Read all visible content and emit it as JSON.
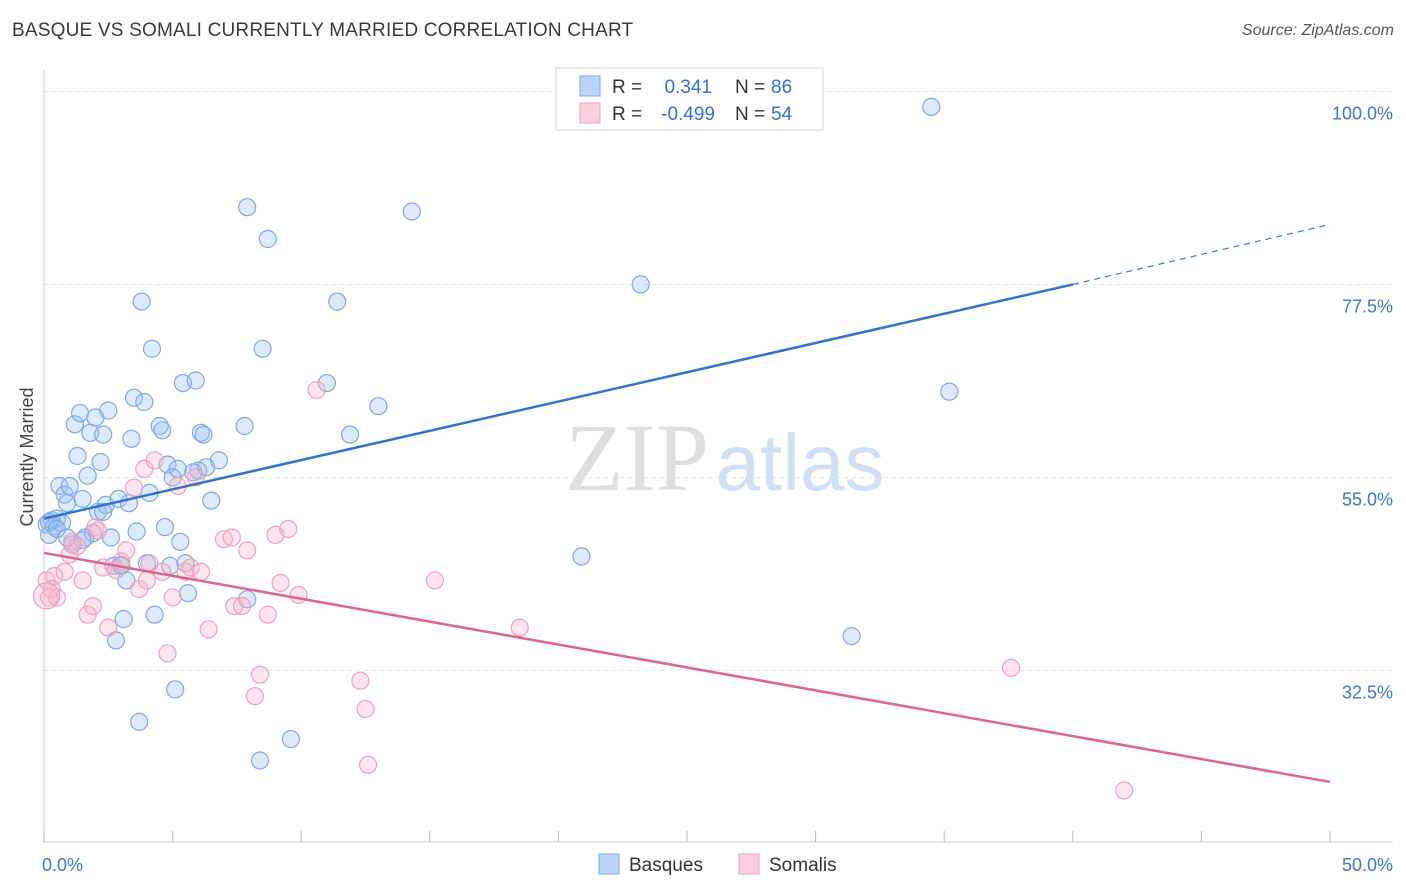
{
  "title": "BASQUE VS SOMALI CURRENTLY MARRIED CORRELATION CHART",
  "source": "Source: ZipAtlas.com",
  "watermark": {
    "zip": "ZIP",
    "atlas": "atlas"
  },
  "legend_box": {
    "rows": [
      {
        "r_label": "R =",
        "r_value": "0.341",
        "n_label": "N =",
        "n_value": "86",
        "color": "#7aaae8"
      },
      {
        "r_label": "R =",
        "r_value": "-0.499",
        "n_label": "N =",
        "n_value": "54",
        "color": "#f2a0b8"
      }
    ]
  },
  "chart_data": {
    "type": "scatter",
    "title": "BASQUE VS SOMALI CURRENTLY MARRIED CORRELATION CHART",
    "xlabel": "",
    "ylabel": "Currently Married",
    "xlim": [
      0,
      50
    ],
    "ylim": [
      12.5,
      102.5
    ],
    "x_tick_labels": [
      "0.0%",
      "50.0%"
    ],
    "y_ticks": [
      32.5,
      55.0,
      77.5,
      100.0
    ],
    "y_tick_labels": [
      "32.5%",
      "55.0%",
      "77.5%",
      "100.0%"
    ],
    "grid": true,
    "legend_position": "bottom-center",
    "series": [
      {
        "name": "Basques",
        "color": "#7aaae8",
        "line_color": "#2f74d0",
        "trend": {
          "x": [
            0,
            40,
            50
          ],
          "y": [
            50.2,
            77.5,
            84.5
          ]
        },
        "points": [
          [
            0.1,
            49.5
          ],
          [
            0.2,
            48.3
          ],
          [
            0.3,
            50.0
          ],
          [
            0.4,
            49.3
          ],
          [
            0.5,
            50.2
          ],
          [
            0.6,
            54.0
          ],
          [
            0.7,
            49.7
          ],
          [
            0.8,
            53.0
          ],
          [
            0.9,
            52.0
          ],
          [
            1.0,
            54.0
          ],
          [
            1.1,
            47.2
          ],
          [
            1.2,
            61.2
          ],
          [
            1.3,
            57.5
          ],
          [
            1.4,
            62.5
          ],
          [
            1.5,
            52.5
          ],
          [
            1.6,
            48.0
          ],
          [
            1.7,
            55.2
          ],
          [
            1.8,
            60.2
          ],
          [
            1.9,
            48.5
          ],
          [
            2.0,
            62.0
          ],
          [
            2.1,
            51.0
          ],
          [
            2.2,
            56.8
          ],
          [
            2.3,
            60.0
          ],
          [
            2.4,
            51.8
          ],
          [
            2.5,
            62.8
          ],
          [
            2.6,
            48.0
          ],
          [
            2.7,
            44.7
          ],
          [
            2.8,
            36.0
          ],
          [
            2.9,
            52.5
          ],
          [
            3.0,
            44.7
          ],
          [
            3.1,
            38.5
          ],
          [
            3.2,
            43.0
          ],
          [
            3.3,
            52.0
          ],
          [
            3.4,
            59.5
          ],
          [
            3.5,
            64.3
          ],
          [
            3.6,
            48.7
          ],
          [
            3.7,
            26.5
          ],
          [
            3.8,
            75.5
          ],
          [
            3.9,
            63.8
          ],
          [
            4.1,
            53.2
          ],
          [
            4.2,
            70.0
          ],
          [
            4.3,
            39.0
          ],
          [
            4.5,
            61.0
          ],
          [
            4.6,
            60.5
          ],
          [
            4.7,
            49.2
          ],
          [
            4.8,
            56.5
          ],
          [
            4.9,
            44.7
          ],
          [
            5.0,
            55.0
          ],
          [
            5.1,
            30.3
          ],
          [
            5.2,
            56.0
          ],
          [
            5.3,
            47.5
          ],
          [
            5.4,
            66.0
          ],
          [
            5.5,
            45.0
          ],
          [
            5.6,
            41.5
          ],
          [
            5.9,
            66.3
          ],
          [
            6.0,
            55.8
          ],
          [
            6.1,
            60.2
          ],
          [
            6.2,
            60.0
          ],
          [
            6.5,
            52.3
          ],
          [
            6.8,
            57.0
          ],
          [
            7.8,
            61.0
          ],
          [
            7.9,
            86.5
          ],
          [
            7.9,
            40.8
          ],
          [
            8.4,
            22.0
          ],
          [
            8.5,
            70.0
          ],
          [
            8.7,
            82.8
          ],
          [
            9.6,
            24.5
          ],
          [
            11.0,
            66.0
          ],
          [
            11.4,
            75.5
          ],
          [
            11.9,
            60.0
          ],
          [
            13.0,
            63.3
          ],
          [
            14.3,
            86.0
          ],
          [
            20.9,
            45.8
          ],
          [
            23.2,
            77.5
          ],
          [
            31.4,
            36.5
          ],
          [
            34.5,
            98.2
          ],
          [
            35.2,
            65.0
          ],
          [
            0.2,
            49.8
          ],
          [
            0.5,
            49.0
          ],
          [
            0.9,
            48.0
          ],
          [
            1.5,
            47.7
          ],
          [
            2.3,
            51.0
          ],
          [
            3.0,
            44.8
          ],
          [
            4.0,
            45.0
          ],
          [
            5.8,
            55.6
          ],
          [
            6.3,
            56.2
          ]
        ]
      },
      {
        "name": "Somalis",
        "color": "#f2a0b8",
        "line_color": "#e0628e",
        "trend": {
          "x": [
            0,
            50
          ],
          "y": [
            46.2,
            19.5
          ]
        },
        "points": [
          [
            0.1,
            43.0
          ],
          [
            0.2,
            41.0
          ],
          [
            0.4,
            43.5
          ],
          [
            0.5,
            41.0
          ],
          [
            0.8,
            44.0
          ],
          [
            1.0,
            46.0
          ],
          [
            1.1,
            47.5
          ],
          [
            1.3,
            47.0
          ],
          [
            1.5,
            43.0
          ],
          [
            1.7,
            39.0
          ],
          [
            1.9,
            40.0
          ],
          [
            2.0,
            49.2
          ],
          [
            2.1,
            48.8
          ],
          [
            2.3,
            44.5
          ],
          [
            2.5,
            37.5
          ],
          [
            2.8,
            44.2
          ],
          [
            3.0,
            45.2
          ],
          [
            3.2,
            46.5
          ],
          [
            3.5,
            53.8
          ],
          [
            3.7,
            42.0
          ],
          [
            3.9,
            56.0
          ],
          [
            4.0,
            43.0
          ],
          [
            4.1,
            45.0
          ],
          [
            4.3,
            57.0
          ],
          [
            4.6,
            44.0
          ],
          [
            4.8,
            34.5
          ],
          [
            5.0,
            41.0
          ],
          [
            5.2,
            54.0
          ],
          [
            5.5,
            44.0
          ],
          [
            5.7,
            44.5
          ],
          [
            5.9,
            55.0
          ],
          [
            6.1,
            44.0
          ],
          [
            6.4,
            37.3
          ],
          [
            7.0,
            47.8
          ],
          [
            7.3,
            48.0
          ],
          [
            7.4,
            40.0
          ],
          [
            7.7,
            40.0
          ],
          [
            7.9,
            46.5
          ],
          [
            8.2,
            29.5
          ],
          [
            8.4,
            32.0
          ],
          [
            8.7,
            39.0
          ],
          [
            9.0,
            48.3
          ],
          [
            9.2,
            42.7
          ],
          [
            9.5,
            49.0
          ],
          [
            9.9,
            41.3
          ],
          [
            10.6,
            65.2
          ],
          [
            12.3,
            31.3
          ],
          [
            12.5,
            28.0
          ],
          [
            12.6,
            21.5
          ],
          [
            15.2,
            43.0
          ],
          [
            18.5,
            37.5
          ],
          [
            37.6,
            32.8
          ],
          [
            42.0,
            18.5
          ],
          [
            0.3,
            42.0
          ]
        ]
      }
    ]
  }
}
